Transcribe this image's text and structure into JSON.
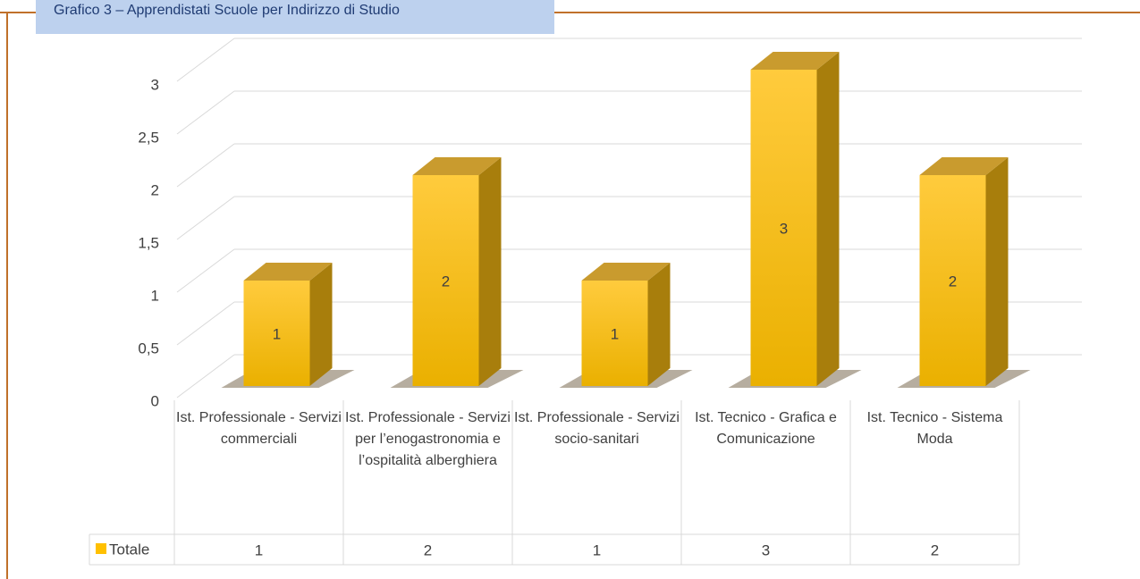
{
  "chart_data": {
    "type": "bar",
    "title": "Grafico 3 – Apprendistati Scuole per Indirizzo di Studio",
    "categories": [
      "Ist. Professionale - Servizi commerciali",
      "Ist. Professionale - Servizi per l’enogastronomia e l’ospitalità alberghiera",
      "Ist. Professionale - Servizi socio-sanitari",
      "Ist. Tecnico - Grafica e Comunicazione",
      "Ist. Tecnico - Sistema Moda"
    ],
    "series": [
      {
        "name": "Totale",
        "color": "#ffc000",
        "values": [
          1,
          2,
          1,
          3,
          2
        ]
      }
    ],
    "ylim": [
      0,
      3
    ],
    "yticks": [
      0,
      {
        "value": 0.5,
        "label": "0,5"
      },
      1,
      {
        "value": 1.5,
        "label": "1,5"
      },
      2,
      {
        "value": 2.5,
        "label": "2,5"
      },
      3
    ],
    "grid": true,
    "data_table": true
  }
}
